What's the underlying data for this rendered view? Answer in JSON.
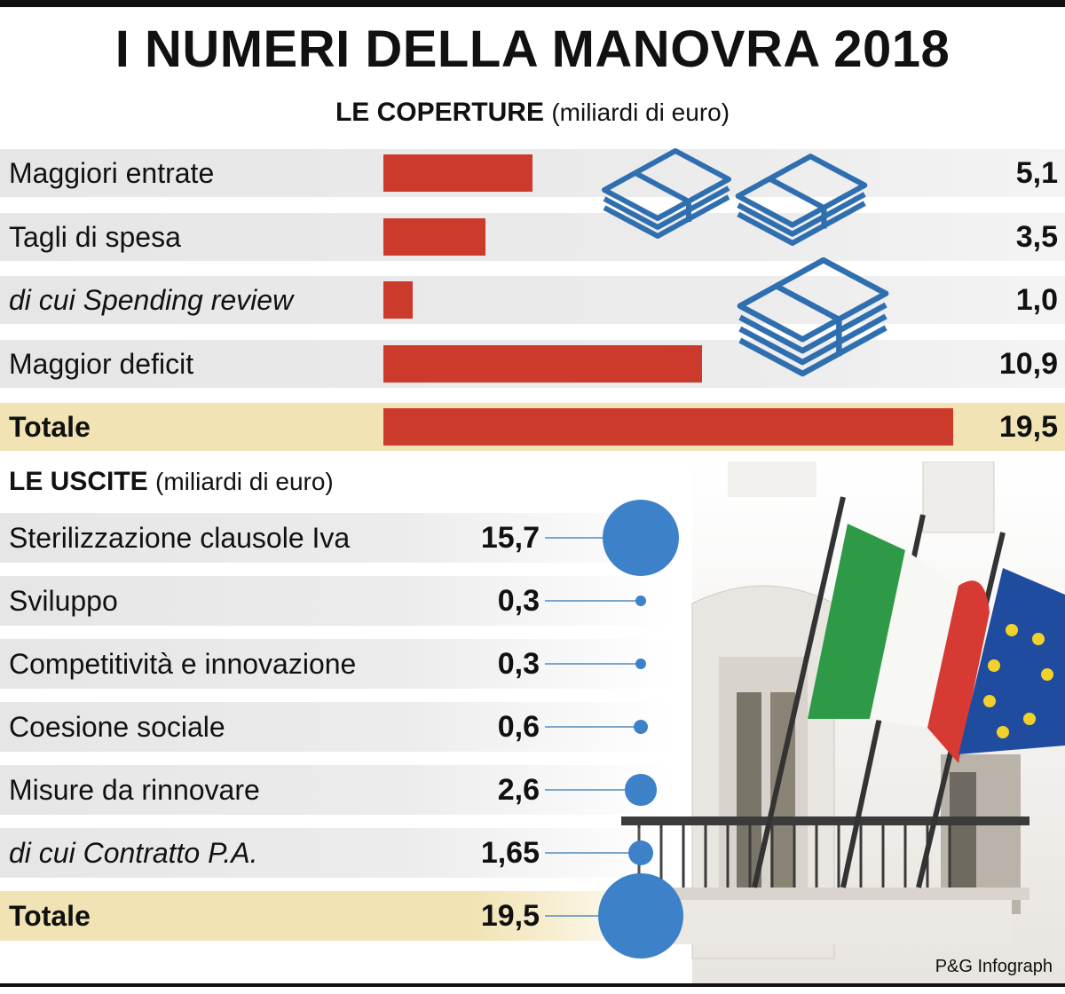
{
  "title": "I NUMERI DELLA MANOVRA 2018",
  "coperture": {
    "heading": "LE COPERTURE",
    "unit": "(miliardi di euro)"
  },
  "uscite": {
    "heading": "LE USCITE",
    "unit": "(miliardi di euro)"
  },
  "credit": "P&G Infograph",
  "colors": {
    "bar": "#cc3a2c",
    "bubble": "#3d82c8",
    "total_row": "#f1e3b3",
    "icon": "#2f6fb0"
  },
  "icons": [
    "banknote-stack-icon",
    "banknote-stack-icon",
    "banknote-stack-icon",
    "italian-flag",
    "eu-flag",
    "palazzo-balcony-photo"
  ],
  "chart_data": [
    {
      "type": "bar",
      "title": "LE COPERTURE",
      "ylabel": "(miliardi di euro)",
      "categories": [
        "Maggiori entrate",
        "Tagli di spesa",
        "di cui Spending review",
        "Maggior deficit",
        "Totale"
      ],
      "values": [
        5.1,
        3.5,
        1.0,
        10.9,
        19.5
      ],
      "value_labels": [
        "5,1",
        "3,5",
        "1,0",
        "10,9",
        "19,5"
      ],
      "italic": [
        false,
        false,
        true,
        false,
        false
      ],
      "bold": [
        false,
        false,
        false,
        false,
        true
      ]
    },
    {
      "type": "scatter",
      "title": "LE USCITE",
      "ylabel": "(miliardi di euro)",
      "categories": [
        "Sterilizzazione clausole Iva",
        "Sviluppo",
        "Competitività e innovazione",
        "Coesione sociale",
        "Misure da rinnovare",
        "di cui Contratto P.A.",
        "Totale"
      ],
      "values": [
        15.7,
        0.3,
        0.3,
        0.6,
        2.6,
        1.65,
        19.5
      ],
      "value_labels": [
        "15,7",
        "0,3",
        "0,3",
        "0,6",
        "2,6",
        "1,65",
        "19,5"
      ],
      "italic": [
        false,
        false,
        false,
        false,
        false,
        true,
        false
      ],
      "bold": [
        false,
        false,
        false,
        false,
        false,
        false,
        true
      ]
    }
  ]
}
